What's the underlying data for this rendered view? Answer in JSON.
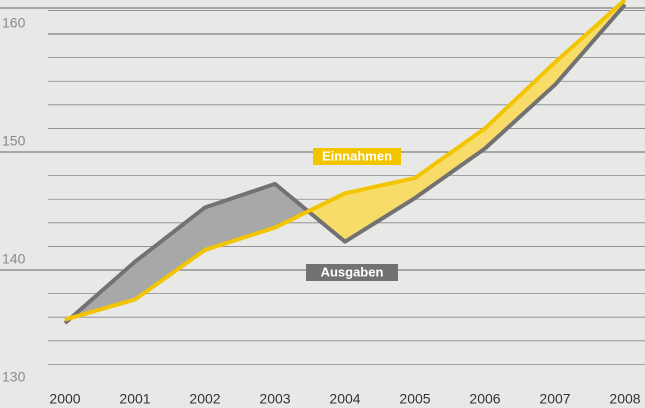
{
  "chart_data": {
    "type": "line",
    "x": [
      2000,
      2001,
      2002,
      2003,
      2004,
      2005,
      2006,
      2007,
      2008
    ],
    "series": [
      {
        "name": "Einnahmen",
        "color": "#f2c500",
        "values": [
          135.8,
          137.5,
          141.7,
          143.6,
          146.5,
          147.8,
          152.0,
          157.6,
          162.9
        ]
      },
      {
        "name": "Ausgaben",
        "color": "#727272",
        "values": [
          135.5,
          140.7,
          145.3,
          147.3,
          142.4,
          146.1,
          150.3,
          155.7,
          162.5
        ]
      }
    ],
    "xlim": [
      2000,
      2008
    ],
    "ylim": [
      130,
      162.8
    ],
    "yticks": [
      130,
      140,
      150,
      160
    ],
    "minor_yticks": [
      132,
      134,
      136,
      138,
      142,
      144,
      146,
      148,
      152,
      154,
      156,
      158,
      162
    ],
    "grid": true
  }
}
